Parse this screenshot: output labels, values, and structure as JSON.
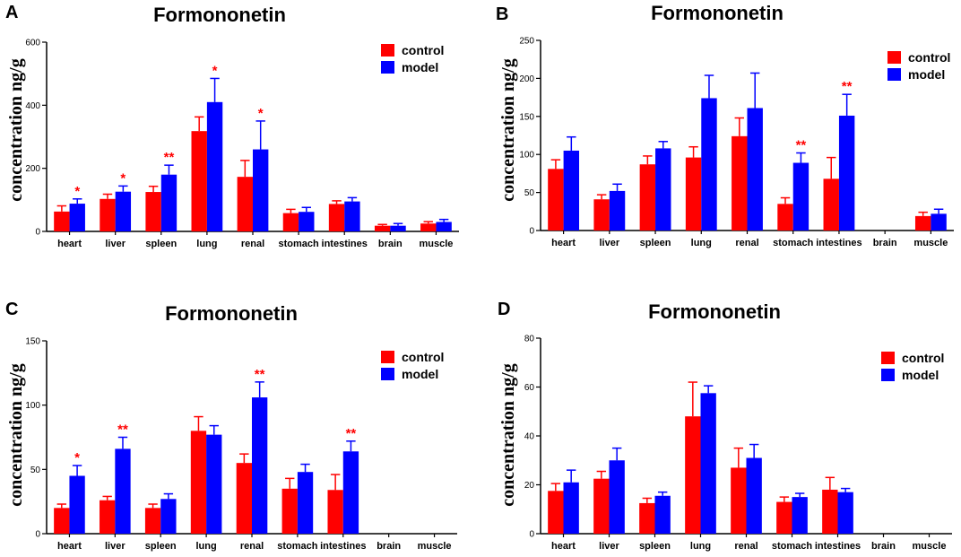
{
  "colors": {
    "control": "#ff0000",
    "model": "#0000ff",
    "star": "#ff0000",
    "axis": "#000000"
  },
  "chart_data": [
    {
      "panel": "A",
      "type": "bar",
      "title": "Formononetin",
      "ylabel": "concentration ng/g",
      "xlabel": "",
      "ylim": [
        0,
        600
      ],
      "yticks": [
        0,
        200,
        400,
        600
      ],
      "legend": "top-right",
      "categories": [
        "heart",
        "liver",
        "spleen",
        "lung",
        "renal",
        "stomach",
        "intestines",
        "brain",
        "muscle"
      ],
      "series": [
        {
          "name": "control",
          "values": [
            63,
            103,
            125,
            318,
            173,
            58,
            87,
            18,
            25
          ],
          "errors": [
            18,
            15,
            18,
            45,
            52,
            12,
            10,
            4,
            6
          ]
        },
        {
          "name": "model",
          "values": [
            88,
            126,
            180,
            410,
            260,
            62,
            95,
            18,
            30
          ],
          "errors": [
            15,
            18,
            30,
            75,
            90,
            14,
            12,
            7,
            8
          ]
        }
      ],
      "significance": [
        {
          "category": "heart",
          "series": "model",
          "label": "*"
        },
        {
          "category": "liver",
          "series": "model",
          "label": "*"
        },
        {
          "category": "spleen",
          "series": "model",
          "label": "**"
        },
        {
          "category": "lung",
          "series": "model",
          "label": "*"
        },
        {
          "category": "renal",
          "series": "model",
          "label": "*"
        }
      ]
    },
    {
      "panel": "B",
      "type": "bar",
      "title": "Formononetin",
      "ylabel": "concentration ng/g",
      "xlabel": "",
      "ylim": [
        0,
        250
      ],
      "yticks": [
        0,
        50,
        100,
        150,
        200,
        250
      ],
      "legend": "top-right",
      "categories": [
        "heart",
        "liver",
        "spleen",
        "lung",
        "renal",
        "stomach",
        "intestines",
        "brain",
        "muscle"
      ],
      "series": [
        {
          "name": "control",
          "values": [
            81,
            41,
            87,
            96,
            124,
            35,
            68,
            0,
            19
          ],
          "errors": [
            12,
            6,
            11,
            14,
            24,
            8,
            28,
            0,
            5
          ]
        },
        {
          "name": "model",
          "values": [
            105,
            52,
            108,
            174,
            161,
            89,
            151,
            0,
            22
          ],
          "errors": [
            18,
            9,
            9,
            30,
            46,
            13,
            28,
            0,
            6
          ]
        }
      ],
      "significance": [
        {
          "category": "stomach",
          "series": "model",
          "label": "**"
        },
        {
          "category": "intestines",
          "series": "model",
          "label": "**"
        }
      ]
    },
    {
      "panel": "C",
      "type": "bar",
      "title": "Formononetin",
      "ylabel": "concentration ng/g",
      "xlabel": "",
      "ylim": [
        0,
        150
      ],
      "yticks": [
        0,
        50,
        100,
        150
      ],
      "legend": "top-right",
      "categories": [
        "heart",
        "liver",
        "spleen",
        "lung",
        "renal",
        "stomach",
        "intestines",
        "brain",
        "muscle"
      ],
      "series": [
        {
          "name": "control",
          "values": [
            20,
            26,
            20,
            80,
            55,
            35,
            34,
            0,
            0
          ],
          "errors": [
            3,
            3,
            3,
            11,
            7,
            8,
            12,
            0,
            0
          ]
        },
        {
          "name": "model",
          "values": [
            45,
            66,
            27,
            77,
            106,
            48,
            64,
            0,
            0
          ],
          "errors": [
            8,
            9,
            4,
            7,
            12,
            6,
            8,
            0,
            0
          ]
        }
      ],
      "significance": [
        {
          "category": "heart",
          "series": "model",
          "label": "*"
        },
        {
          "category": "liver",
          "series": "model",
          "label": "**"
        },
        {
          "category": "renal",
          "series": "model",
          "label": "**"
        },
        {
          "category": "intestines",
          "series": "model",
          "label": "**"
        }
      ]
    },
    {
      "panel": "D",
      "type": "bar",
      "title": "Formononetin",
      "ylabel": "concentration ng/g",
      "xlabel": "",
      "ylim": [
        0,
        80
      ],
      "yticks": [
        0,
        20,
        40,
        60,
        80
      ],
      "legend": "top-right",
      "categories": [
        "heart",
        "liver",
        "spleen",
        "lung",
        "renal",
        "stomach",
        "intestines",
        "brain",
        "muscle"
      ],
      "series": [
        {
          "name": "control",
          "values": [
            17.5,
            22.5,
            12.5,
            48,
            27,
            13,
            18,
            0,
            0
          ],
          "errors": [
            3,
            3,
            2,
            14,
            8,
            2,
            5,
            0,
            0
          ]
        },
        {
          "name": "model",
          "values": [
            21,
            30,
            15.5,
            57.5,
            31,
            15,
            17,
            0,
            0
          ],
          "errors": [
            5,
            5,
            1.5,
            3,
            5.5,
            1.5,
            1.5,
            0,
            0
          ]
        }
      ],
      "significance": []
    }
  ]
}
